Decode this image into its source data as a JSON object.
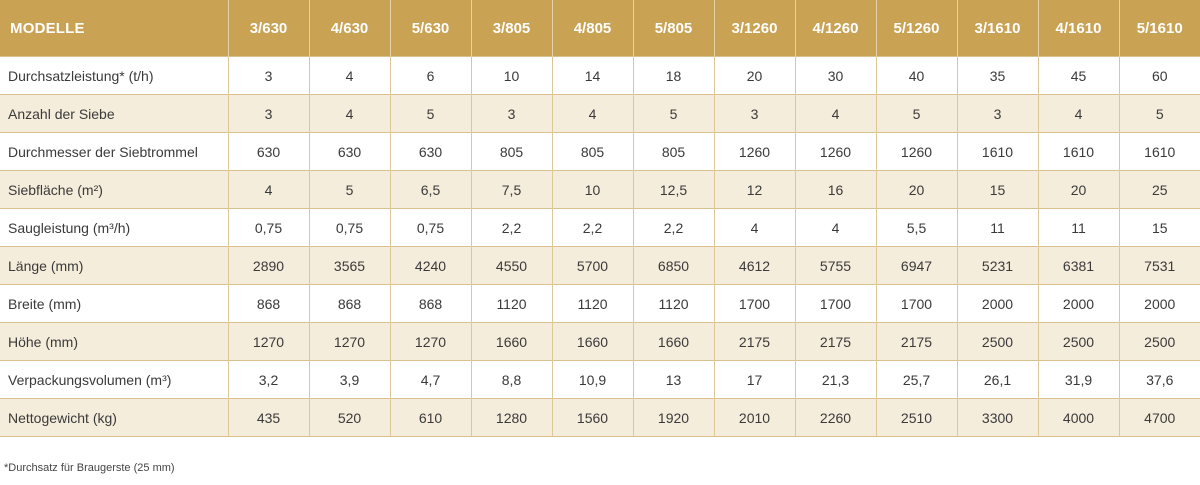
{
  "table": {
    "header_label": "MODELLE",
    "models": [
      "3/630",
      "4/630",
      "5/630",
      "3/805",
      "4/805",
      "5/805",
      "3/1260",
      "4/1260",
      "5/1260",
      "3/1610",
      "4/1610",
      "5/1610"
    ],
    "rows": [
      {
        "label": "Durchsatzleistung* (t/h)",
        "values": [
          "3",
          "4",
          "6",
          "10",
          "14",
          "18",
          "20",
          "30",
          "40",
          "35",
          "45",
          "60"
        ]
      },
      {
        "label": "Anzahl der Siebe",
        "values": [
          "3",
          "4",
          "5",
          "3",
          "4",
          "5",
          "3",
          "4",
          "5",
          "3",
          "4",
          "5"
        ]
      },
      {
        "label": "Durchmesser der Siebtrommel",
        "values": [
          "630",
          "630",
          "630",
          "805",
          "805",
          "805",
          "1260",
          "1260",
          "1260",
          "1610",
          "1610",
          "1610"
        ]
      },
      {
        "label": "Siebfläche (m²)",
        "values": [
          "4",
          "5",
          "6,5",
          "7,5",
          "10",
          "12,5",
          "12",
          "16",
          "20",
          "15",
          "20",
          "25"
        ]
      },
      {
        "label": "Saugleistung (m³/h)",
        "values": [
          "0,75",
          "0,75",
          "0,75",
          "2,2",
          "2,2",
          "2,2",
          "4",
          "4",
          "5,5",
          "11",
          "11",
          "15"
        ]
      },
      {
        "label": "Länge (mm)",
        "values": [
          "2890",
          "3565",
          "4240",
          "4550",
          "5700",
          "6850",
          "4612",
          "5755",
          "6947",
          "5231",
          "6381",
          "7531"
        ]
      },
      {
        "label": "Breite (mm)",
        "values": [
          "868",
          "868",
          "868",
          "1120",
          "1120",
          "1120",
          "1700",
          "1700",
          "1700",
          "2000",
          "2000",
          "2000"
        ]
      },
      {
        "label": "Höhe (mm)",
        "values": [
          "1270",
          "1270",
          "1270",
          "1660",
          "1660",
          "1660",
          "2175",
          "2175",
          "2175",
          "2500",
          "2500",
          "2500"
        ]
      },
      {
        "label": "Verpackungsvolumen (m³)",
        "values": [
          "3,2",
          "3,9",
          "4,7",
          "8,8",
          "10,9",
          "13",
          "17",
          "21,3",
          "25,7",
          "26,1",
          "31,9",
          "37,6"
        ]
      },
      {
        "label": "Nettogewicht (kg)",
        "values": [
          "435",
          "520",
          "610",
          "1280",
          "1560",
          "1920",
          "2010",
          "2260",
          "2510",
          "3300",
          "4000",
          "4700"
        ]
      }
    ]
  },
  "footnote": "*Durchsatz für Braugerste (25 mm)",
  "colors": {
    "header_bg": "#c9a253",
    "header_text": "#ffffff",
    "stripe_bg": "#f5eddc",
    "row_border": "#d9c08c"
  }
}
